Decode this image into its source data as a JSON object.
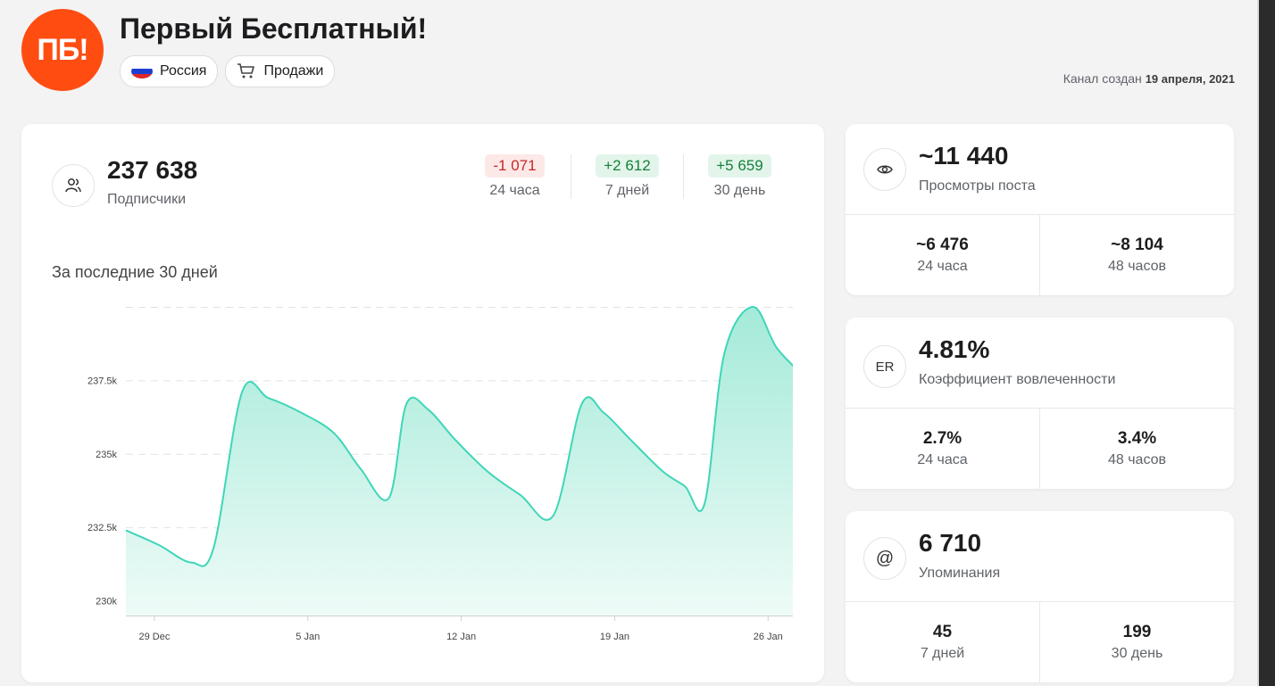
{
  "header": {
    "logo_text": "ПБ!",
    "title": "Первый Бесплатный!",
    "tags": [
      {
        "label": "Россия",
        "icon": "russia-flag-icon"
      },
      {
        "label": "Продажи",
        "icon": "cart-icon"
      }
    ],
    "created_label": "Канал создан",
    "created_date": "19 апреля, 2021"
  },
  "subscribers": {
    "icon": "users-icon",
    "value": "237 638",
    "label": "Подписчики",
    "deltas": [
      {
        "value": "-1 071",
        "period": "24 часа",
        "trend": "negative"
      },
      {
        "value": "+2 612",
        "period": "7 дней",
        "trend": "positive"
      },
      {
        "value": "+5 659",
        "period": "30 день",
        "trend": "positive"
      }
    ],
    "chart_caption": "За последние 30 дней"
  },
  "chart_data": {
    "type": "area",
    "ylim": [
      229500,
      240000
    ],
    "y_ticks": [
      {
        "value": 230000,
        "label": "230k"
      },
      {
        "value": 232500,
        "label": "232.5k"
      },
      {
        "value": 235000,
        "label": "235k"
      },
      {
        "value": 237500,
        "label": "237.5k"
      }
    ],
    "x_ticks": [
      {
        "x": 1.3,
        "label": "29 Dec"
      },
      {
        "x": 8.3,
        "label": "5 Jan"
      },
      {
        "x": 15.3,
        "label": "12 Jan"
      },
      {
        "x": 22.3,
        "label": "19 Jan"
      },
      {
        "x": 29.3,
        "label": "26 Jan"
      }
    ],
    "xlim": [
      0,
      31
    ],
    "series": [
      {
        "color": "#3fd6b8",
        "points": [
          [
            0,
            232400
          ],
          [
            1.5,
            231900
          ],
          [
            3,
            231300
          ],
          [
            4,
            231800
          ],
          [
            5.3,
            237100
          ],
          [
            6.5,
            236900
          ],
          [
            8,
            236400
          ],
          [
            9.5,
            235700
          ],
          [
            10.7,
            234500
          ],
          [
            12,
            233500
          ],
          [
            12.8,
            236700
          ],
          [
            13.8,
            236500
          ],
          [
            15,
            235500
          ],
          [
            16.5,
            234400
          ],
          [
            18,
            233600
          ],
          [
            19.5,
            232900
          ],
          [
            20.8,
            236700
          ],
          [
            21.8,
            236400
          ],
          [
            23,
            235500
          ],
          [
            24.5,
            234400
          ],
          [
            25.5,
            233900
          ],
          [
            26.4,
            233300
          ],
          [
            27.3,
            238400
          ],
          [
            28.6,
            240000
          ],
          [
            29.7,
            238600
          ],
          [
            31,
            237600
          ]
        ]
      }
    ],
    "grid": true,
    "colors": {
      "line": "#3fd6b8",
      "fill_top": "#a4ead9",
      "fill_bottom": "#eefbf7",
      "grid": "#e2e2e4",
      "axis": "#cfcfd3",
      "tick_text": "#444444"
    }
  },
  "views": {
    "icon": "eye-icon",
    "value": "~11 440",
    "label": "Просмотры поста",
    "cells": [
      {
        "value": "~6 476",
        "label": "24 часа"
      },
      {
        "value": "~8 104",
        "label": "48 часов"
      }
    ]
  },
  "er": {
    "icon": "er-icon",
    "icon_text": "ER",
    "value": "4.81%",
    "label": "Коэффициент вовлеченности",
    "cells": [
      {
        "value": "2.7%",
        "label": "24 часа"
      },
      {
        "value": "3.4%",
        "label": "48 часов"
      }
    ]
  },
  "mentions": {
    "icon": "at-sign-icon",
    "icon_text": "@",
    "value": "6 710",
    "label": "Упоминания",
    "cells": [
      {
        "value": "45",
        "label": "7 дней"
      },
      {
        "value": "199",
        "label": "30 день"
      }
    ]
  },
  "colors": {
    "brand": "#ff4d12",
    "negative": "#c62828",
    "positive": "#16803c"
  }
}
